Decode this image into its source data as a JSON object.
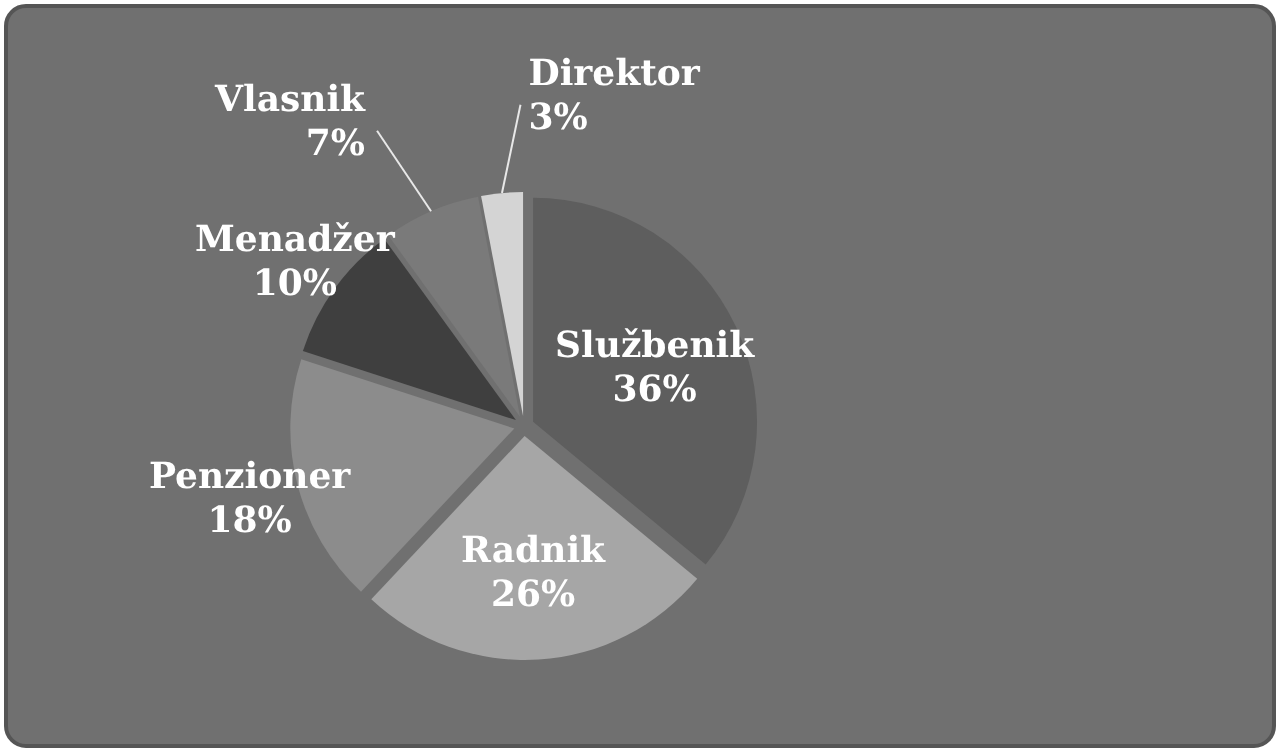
{
  "chart_data": {
    "type": "pie",
    "categories": [
      "Službenik",
      "Radnik",
      "Penzioner",
      "Menadžer",
      "Vlasnik",
      "Direktor"
    ],
    "values": [
      36,
      26,
      18,
      10,
      7,
      3
    ],
    "colors": [
      "#5e5e5e",
      "#a6a6a6",
      "#8c8c8c",
      "#3f3f3f",
      "#7a7a7a",
      "#d4d4d4"
    ],
    "value_labels": [
      "36%",
      "26%",
      "18%",
      "10%",
      "7%",
      "3%"
    ]
  }
}
